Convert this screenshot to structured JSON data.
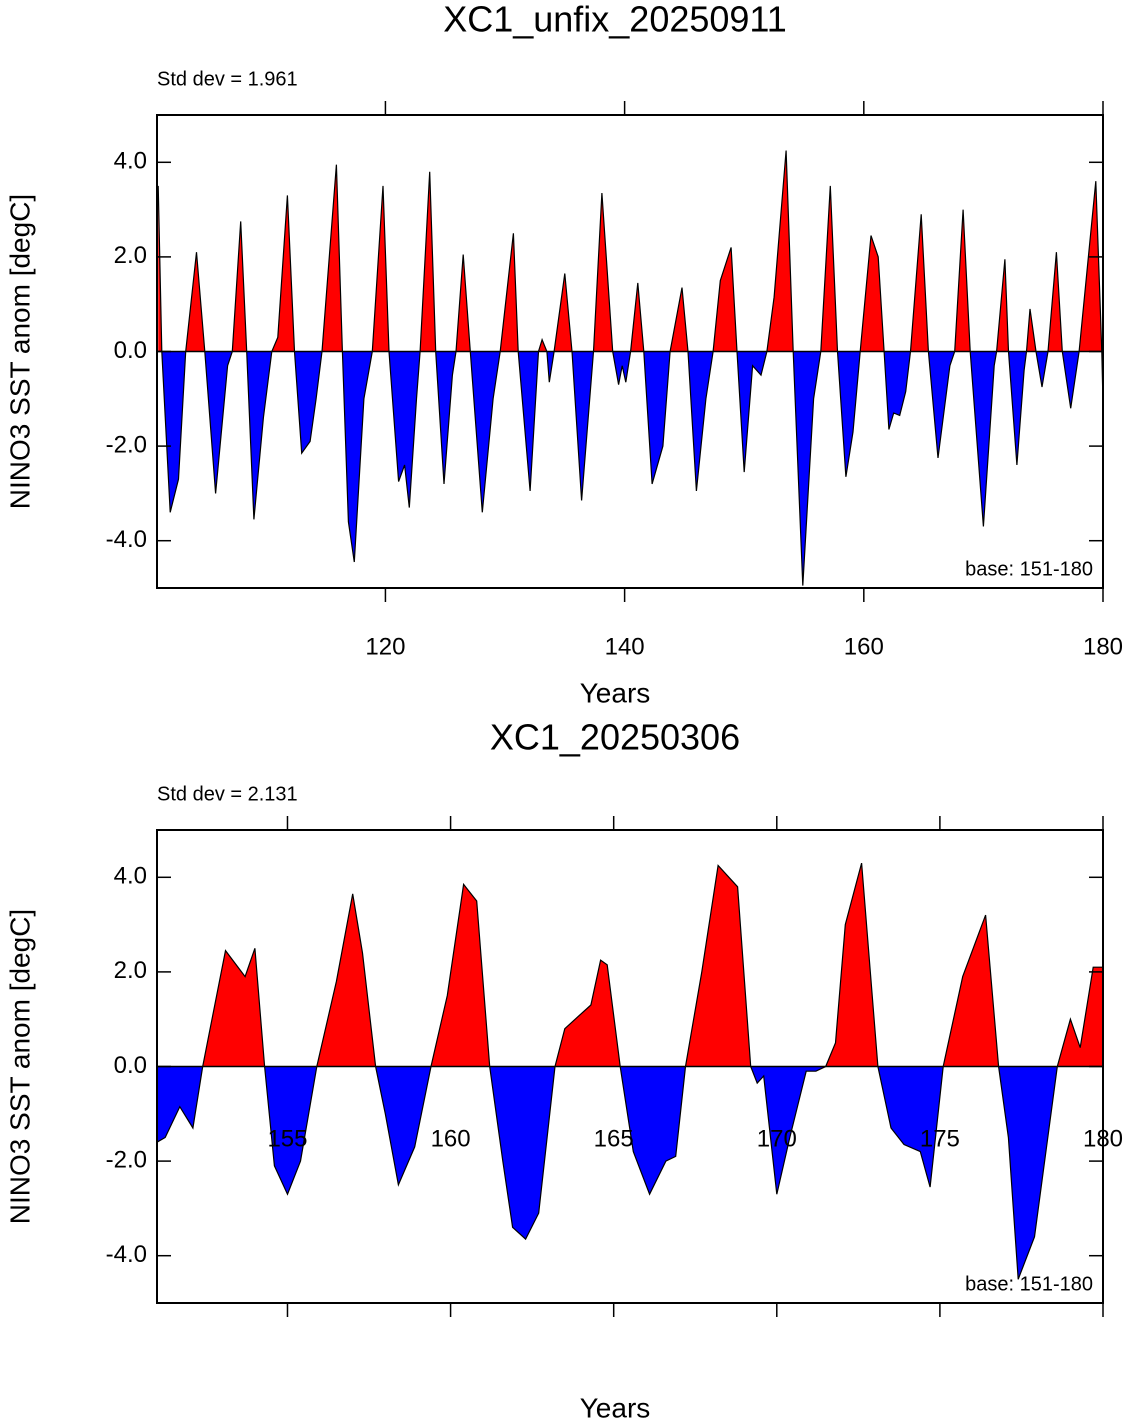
{
  "chart_data": [
    {
      "type": "area",
      "title": "XC1_unfix_20250911",
      "ylabel": "NINO3 SST anom [degC]",
      "xlabel": "Years",
      "annotation_left": "Std dev = 1.961",
      "annotation_right": "base: 151-180",
      "pos_color": "#ff0000",
      "neg_color": "#0000ff",
      "xlim": [
        100.9,
        180
      ],
      "xticks": [
        120,
        140,
        160,
        180
      ],
      "ylim": [
        -5,
        5
      ],
      "yticks": [
        {
          "value": -4,
          "label": "-4.0"
        },
        {
          "value": -2,
          "label": "-2.0"
        },
        {
          "value": 0,
          "label": "0.0"
        },
        {
          "value": 2,
          "label": "2.0"
        },
        {
          "value": 4,
          "label": "4.0"
        }
      ],
      "x": [
        101.0,
        101.3,
        102.0,
        102.7,
        103.3,
        104.2,
        104.9,
        105.8,
        106.8,
        107.2,
        107.9,
        108.4,
        109.0,
        109.8,
        110.5,
        111.0,
        111.8,
        112.4,
        113.0,
        113.7,
        114.2,
        114.7,
        115.9,
        116.4,
        116.9,
        117.4,
        118.2,
        118.9,
        119.8,
        120.3,
        121.1,
        121.6,
        122.0,
        122.6,
        122.9,
        123.7,
        124.2,
        124.9,
        125.6,
        125.9,
        126.5,
        127.1,
        128.1,
        129.0,
        129.6,
        130.7,
        131.1,
        132.1,
        132.8,
        133.1,
        133.5,
        133.7,
        134.1,
        135.0,
        135.6,
        136.4,
        137.4,
        138.1,
        139.0,
        139.5,
        139.8,
        140.1,
        140.5,
        141.1,
        141.6,
        142.3,
        143.2,
        143.8,
        144.8,
        145.3,
        146.0,
        146.8,
        147.4,
        148.0,
        148.9,
        149.4,
        150.0,
        150.7,
        151.4,
        151.9,
        152.5,
        153.5,
        154.1,
        154.9,
        155.8,
        156.4,
        157.2,
        157.8,
        158.5,
        159.1,
        159.7,
        160.6,
        161.2,
        161.7,
        162.1,
        162.5,
        163.0,
        163.5,
        163.9,
        164.8,
        165.4,
        166.2,
        167.2,
        167.6,
        168.3,
        168.9,
        170.0,
        170.9,
        171.1,
        171.8,
        172.1,
        172.8,
        173.4,
        173.6,
        173.9,
        174.4,
        174.9,
        175.4,
        176.1,
        176.6,
        177.3,
        178.0,
        179.4,
        179.9,
        180.0
      ],
      "values": [
        3.5,
        0,
        -3.4,
        -2.7,
        0,
        2.1,
        0,
        -3.0,
        -0.3,
        0,
        2.75,
        0,
        -3.55,
        -1.4,
        0,
        0.3,
        3.3,
        0,
        -2.15,
        -1.9,
        -1.0,
        0,
        3.95,
        0,
        -3.6,
        -4.45,
        -1.0,
        0,
        3.5,
        0,
        -2.75,
        -2.4,
        -3.3,
        -1.0,
        0,
        3.8,
        0,
        -2.8,
        -0.5,
        0,
        2.05,
        0,
        -3.4,
        -1.0,
        0,
        2.5,
        0,
        -2.95,
        0,
        0.25,
        0,
        -0.65,
        0,
        1.65,
        0,
        -3.15,
        0,
        3.35,
        0,
        -0.7,
        -0.3,
        -0.65,
        0,
        1.45,
        0,
        -2.8,
        -2.0,
        0,
        1.35,
        0,
        -2.95,
        -1.0,
        0,
        1.5,
        2.2,
        0,
        -2.55,
        -0.3,
        -0.5,
        0,
        1.15,
        4.25,
        0,
        -4.95,
        -1.0,
        0,
        3.5,
        0,
        -2.65,
        -1.7,
        0,
        2.45,
        2.0,
        0,
        -1.65,
        -1.3,
        -1.35,
        -0.85,
        0,
        2.9,
        0,
        -2.25,
        -0.3,
        0,
        3.0,
        0,
        -3.7,
        -0.3,
        0,
        1.95,
        0,
        -2.4,
        -0.4,
        0,
        0.9,
        0,
        -0.75,
        0,
        2.1,
        0,
        -1.2,
        0,
        3.6,
        0,
        -1.1
      ]
    },
    {
      "type": "area",
      "title": "XC1_20250306",
      "ylabel": "NINO3 SST anom [degC]",
      "xlabel": "Years",
      "annotation_left": "Std dev = 2.131",
      "annotation_right": "base: 151-180",
      "pos_color": "#ff0000",
      "neg_color": "#0000ff",
      "xlim": [
        151,
        180
      ],
      "xticks": [
        155,
        160,
        165,
        170,
        175,
        180
      ],
      "ylim": [
        -5,
        5
      ],
      "yticks": [
        {
          "value": -4,
          "label": "-4.0"
        },
        {
          "value": -2,
          "label": "-2.0"
        },
        {
          "value": 0,
          "label": "0.0"
        },
        {
          "value": 2,
          "label": "2.0"
        },
        {
          "value": 4,
          "label": "4.0"
        }
      ],
      "x": [
        151.0,
        151.25,
        151.7,
        152.1,
        152.4,
        152.6,
        153.1,
        153.7,
        154.0,
        154.3,
        154.6,
        155.0,
        155.4,
        155.9,
        156.5,
        157.0,
        157.3,
        157.7,
        158.0,
        158.4,
        158.9,
        159.4,
        159.9,
        160.4,
        160.8,
        161.2,
        161.6,
        161.9,
        162.3,
        162.7,
        163.2,
        163.5,
        163.9,
        164.3,
        164.6,
        164.8,
        165.2,
        165.6,
        166.1,
        166.6,
        166.9,
        167.2,
        167.7,
        168.2,
        168.8,
        169.2,
        169.4,
        169.6,
        170.0,
        170.4,
        170.9,
        171.2,
        171.5,
        171.8,
        172.1,
        172.6,
        173.1,
        173.5,
        173.9,
        174.4,
        174.7,
        175.1,
        175.7,
        176.4,
        176.8,
        177.1,
        177.4,
        177.9,
        178.6,
        179.0,
        179.3,
        179.7,
        180.0
      ],
      "values": [
        -1.6,
        -1.5,
        -0.85,
        -1.3,
        0,
        0.7,
        2.45,
        1.9,
        2.5,
        0,
        -2.1,
        -2.7,
        -2.0,
        0,
        1.8,
        3.65,
        2.4,
        0,
        -1.0,
        -2.5,
        -1.7,
        0,
        1.5,
        3.85,
        3.5,
        0,
        -2.0,
        -3.4,
        -3.65,
        -3.1,
        0,
        0.8,
        1.05,
        1.3,
        2.25,
        2.15,
        0,
        -1.8,
        -2.7,
        -2.0,
        -1.9,
        0,
        2.0,
        4.25,
        3.8,
        0,
        -0.35,
        -0.2,
        -2.7,
        -1.5,
        -0.1,
        -0.1,
        0,
        0.5,
        3.0,
        4.3,
        0,
        -1.3,
        -1.65,
        -1.8,
        -2.55,
        0,
        1.9,
        3.2,
        0,
        -1.5,
        -4.5,
        -3.6,
        0,
        1.0,
        0.4,
        2.1,
        2.1
      ]
    }
  ]
}
